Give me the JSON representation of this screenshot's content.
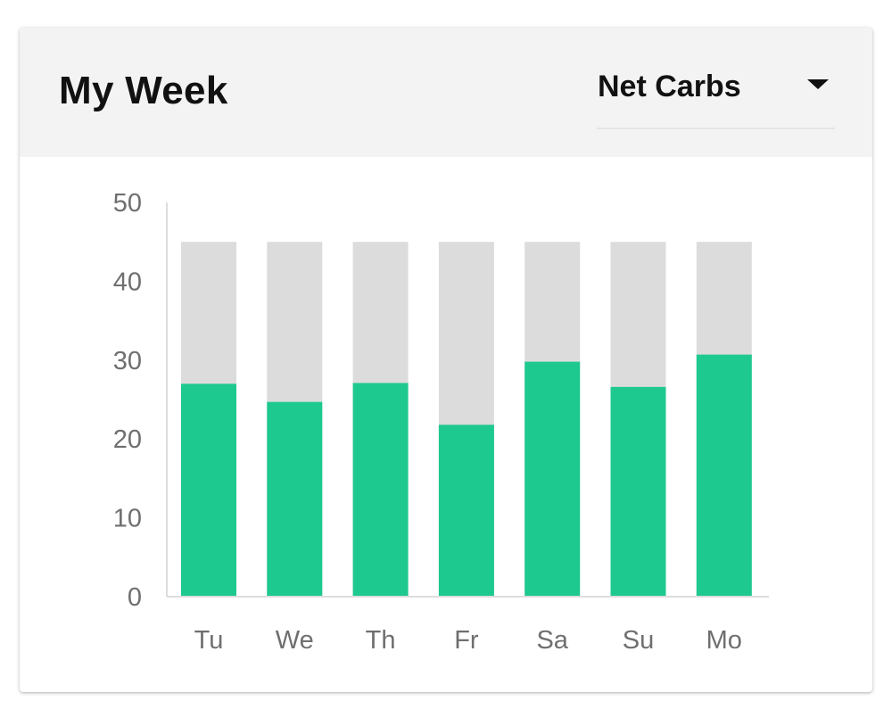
{
  "card": {
    "title": "My Week",
    "metric_selector": {
      "selected": "Net Carbs",
      "icon": "caret-down-icon"
    }
  },
  "colors": {
    "value_bar": "#1dc98e",
    "goal_bar": "#dcdcdc",
    "axis": "#dddddd",
    "header_bg": "#f3f3f3"
  },
  "chart_data": {
    "type": "bar",
    "stacked": "overlay",
    "categories": [
      "Tu",
      "We",
      "Th",
      "Fr",
      "Sa",
      "Su",
      "Mo"
    ],
    "series": [
      {
        "values": [
          45,
          45,
          45,
          45,
          45,
          45,
          45
        ],
        "color": "#dcdcdc"
      },
      {
        "values": [
          27,
          24.7,
          27.1,
          21.8,
          29.8,
          26.6,
          30.7
        ],
        "color": "#1dc98e"
      }
    ],
    "yticks": [
      0,
      10,
      20,
      30,
      40,
      50
    ],
    "ylim": [
      0,
      50
    ],
    "grid": false
  }
}
